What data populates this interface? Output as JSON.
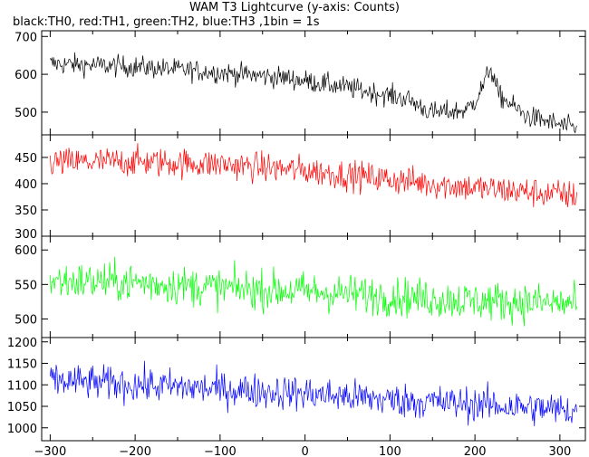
{
  "title": "WAM T3 Lightcurve (y-axis: Counts)",
  "subtitle": "black:TH0, red:TH1, green:TH2, blue:TH3 ,1bin = 1s",
  "chart_data": {
    "type": "line",
    "xlim": [
      -310,
      330
    ],
    "x_ticks": [
      -300,
      -200,
      -100,
      0,
      100,
      200,
      300
    ],
    "x_tick_labels": [
      "−300",
      "−200",
      "−100",
      "0",
      "100",
      "200",
      "300"
    ],
    "x_range_data": [
      -300,
      320
    ],
    "bin_seconds": 1,
    "grid": false,
    "legend": "none",
    "panels": [
      {
        "series": "TH0",
        "color": "#000000",
        "ylim": [
          440,
          715
        ],
        "y_ticks": [
          500,
          600,
          700
        ],
        "trend": [
          [
            -300,
            628
          ],
          [
            -200,
            620
          ],
          [
            -100,
            605
          ],
          [
            -20,
            590
          ],
          [
            50,
            565
          ],
          [
            120,
            535
          ],
          [
            150,
            498
          ],
          [
            190,
            505
          ],
          [
            200,
            530
          ],
          [
            212,
            580
          ],
          [
            218,
            620
          ],
          [
            228,
            545
          ],
          [
            260,
            490
          ],
          [
            320,
            455
          ]
        ],
        "noise_amplitude": 28
      },
      {
        "series": "TH1",
        "color": "#ff0000",
        "ylim": [
          300,
          493
        ],
        "y_ticks": [
          300,
          350,
          400,
          450
        ],
        "trend": [
          [
            -300,
            440
          ],
          [
            -200,
            442
          ],
          [
            -100,
            437
          ],
          [
            0,
            425
          ],
          [
            100,
            408
          ],
          [
            200,
            392
          ],
          [
            320,
            377
          ]
        ],
        "noise_amplitude": 28
      },
      {
        "series": "TH2",
        "color": "#00ff00",
        "ylim": [
          473,
          620
        ],
        "y_ticks": [
          500,
          550,
          600
        ],
        "trend": [
          [
            -300,
            555
          ],
          [
            -200,
            553
          ],
          [
            -100,
            545
          ],
          [
            0,
            540
          ],
          [
            100,
            533
          ],
          [
            200,
            526
          ],
          [
            320,
            522
          ]
        ],
        "noise_amplitude": 28
      },
      {
        "series": "TH3",
        "color": "#0000ff",
        "ylim": [
          970,
          1210
        ],
        "y_ticks": [
          1000,
          1050,
          1100,
          1150,
          1200
        ],
        "trend": [
          [
            -300,
            1110
          ],
          [
            -200,
            1100
          ],
          [
            -100,
            1090
          ],
          [
            0,
            1080
          ],
          [
            100,
            1065
          ],
          [
            200,
            1055
          ],
          [
            320,
            1040
          ]
        ],
        "noise_amplitude": 40
      }
    ]
  }
}
